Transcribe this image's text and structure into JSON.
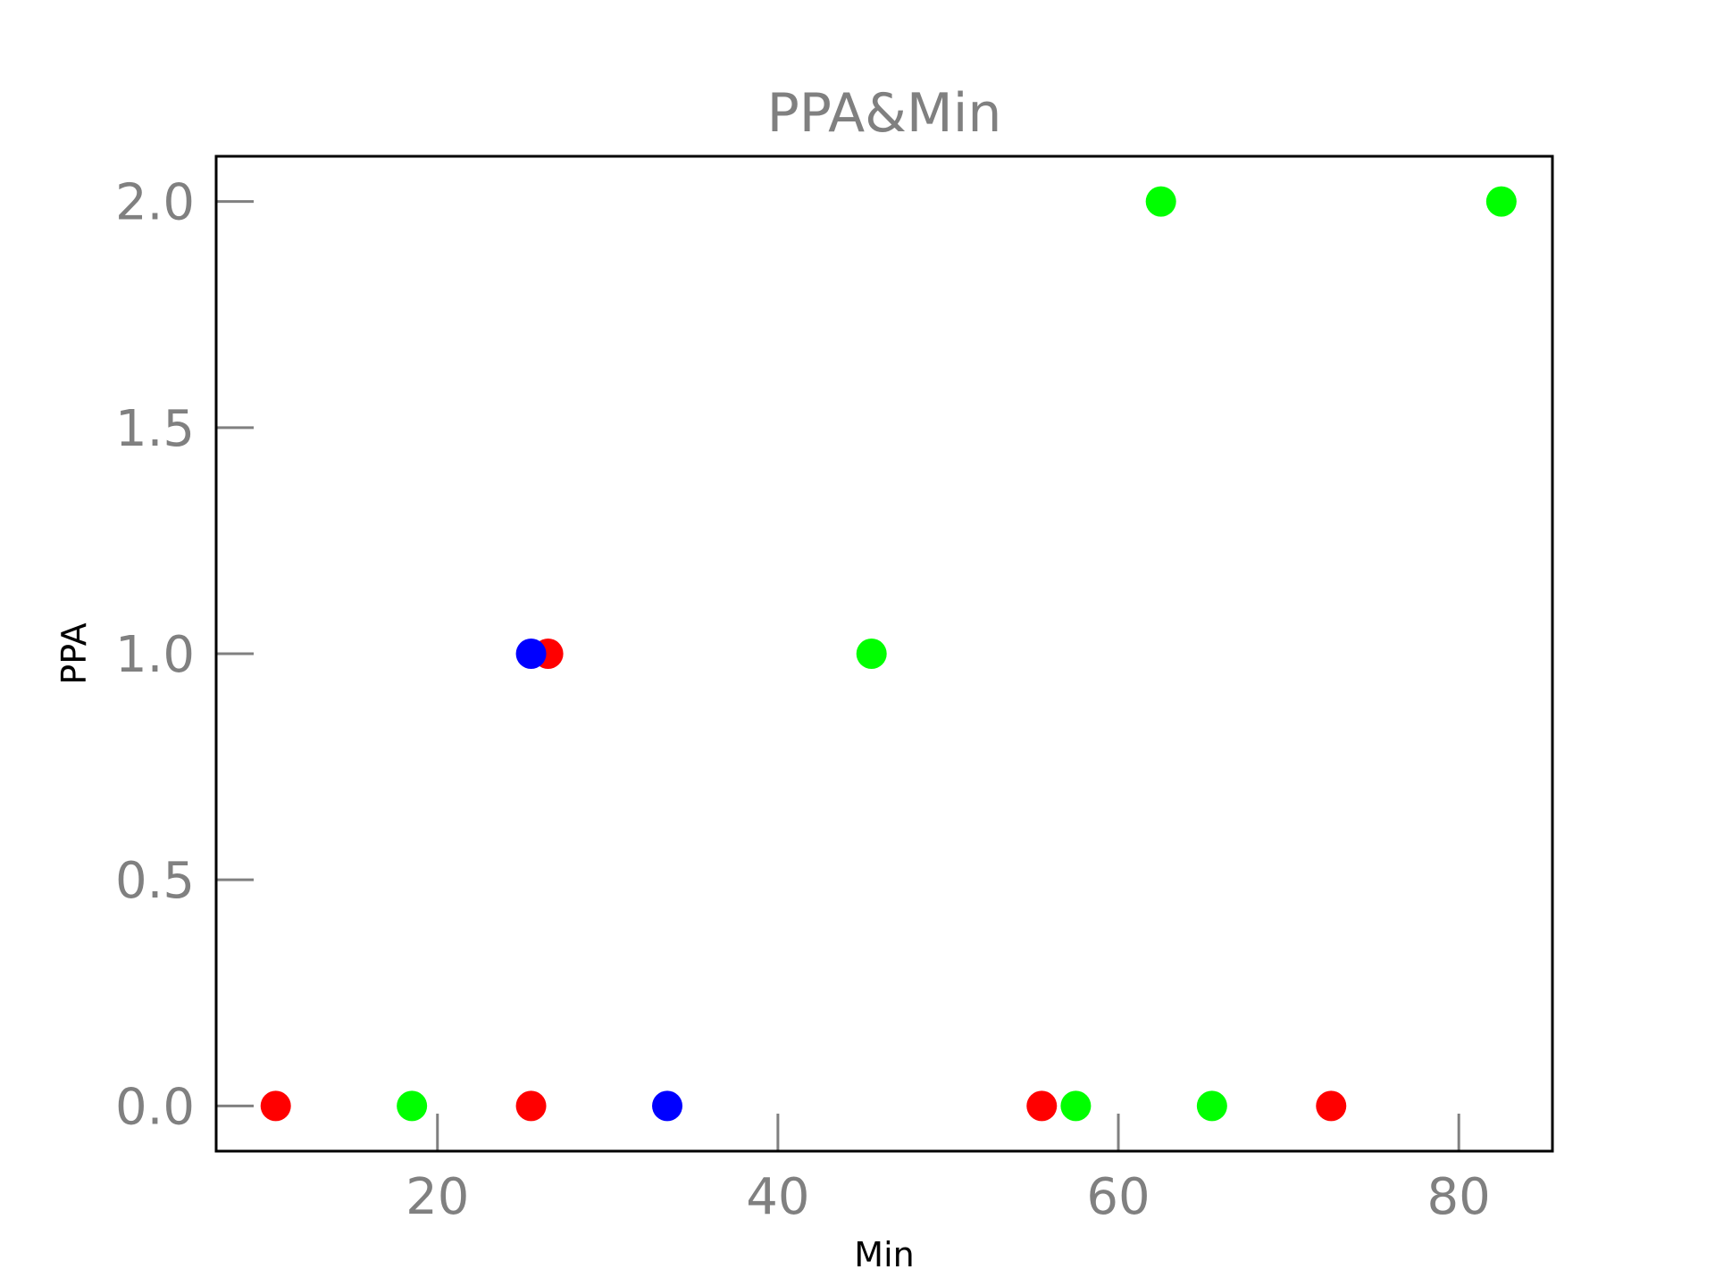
{
  "chart_data": {
    "type": "scatter",
    "title": "PPA&Min",
    "xlabel": "Min",
    "ylabel": "PPA",
    "xlim": [
      7,
      85.5
    ],
    "ylim": [
      -0.1,
      2.1
    ],
    "xticks": [
      20,
      40,
      60,
      80
    ],
    "xtick_labels": [
      "20",
      "40",
      "60",
      "80"
    ],
    "yticks": [
      0.0,
      0.5,
      1.0,
      1.5,
      2.0
    ],
    "ytick_labels": [
      "0.0",
      "0.5",
      "1.0",
      "1.5",
      "2.0"
    ],
    "grid": false,
    "legend": "none",
    "colors": {
      "red": "#ff0000",
      "green": "#00ff00",
      "blue": "#0000ff",
      "tick": "#808080",
      "frame": "#000000"
    },
    "points": [
      {
        "x": 10.5,
        "y": 0.0,
        "color": "#ff0000"
      },
      {
        "x": 18.5,
        "y": 0.0,
        "color": "#00ff00"
      },
      {
        "x": 25.5,
        "y": 0.0,
        "color": "#ff0000"
      },
      {
        "x": 26.5,
        "y": 1.0,
        "color": "#ff0000"
      },
      {
        "x": 25.5,
        "y": 1.0,
        "color": "#0000ff"
      },
      {
        "x": 33.5,
        "y": 0.0,
        "color": "#0000ff"
      },
      {
        "x": 45.5,
        "y": 1.0,
        "color": "#00ff00"
      },
      {
        "x": 55.5,
        "y": 0.0,
        "color": "#ff0000"
      },
      {
        "x": 57.5,
        "y": 0.0,
        "color": "#00ff00"
      },
      {
        "x": 62.5,
        "y": 2.0,
        "color": "#00ff00"
      },
      {
        "x": 65.5,
        "y": 0.0,
        "color": "#00ff00"
      },
      {
        "x": 72.5,
        "y": 0.0,
        "color": "#ff0000"
      },
      {
        "x": 82.5,
        "y": 2.0,
        "color": "#00ff00"
      }
    ]
  }
}
